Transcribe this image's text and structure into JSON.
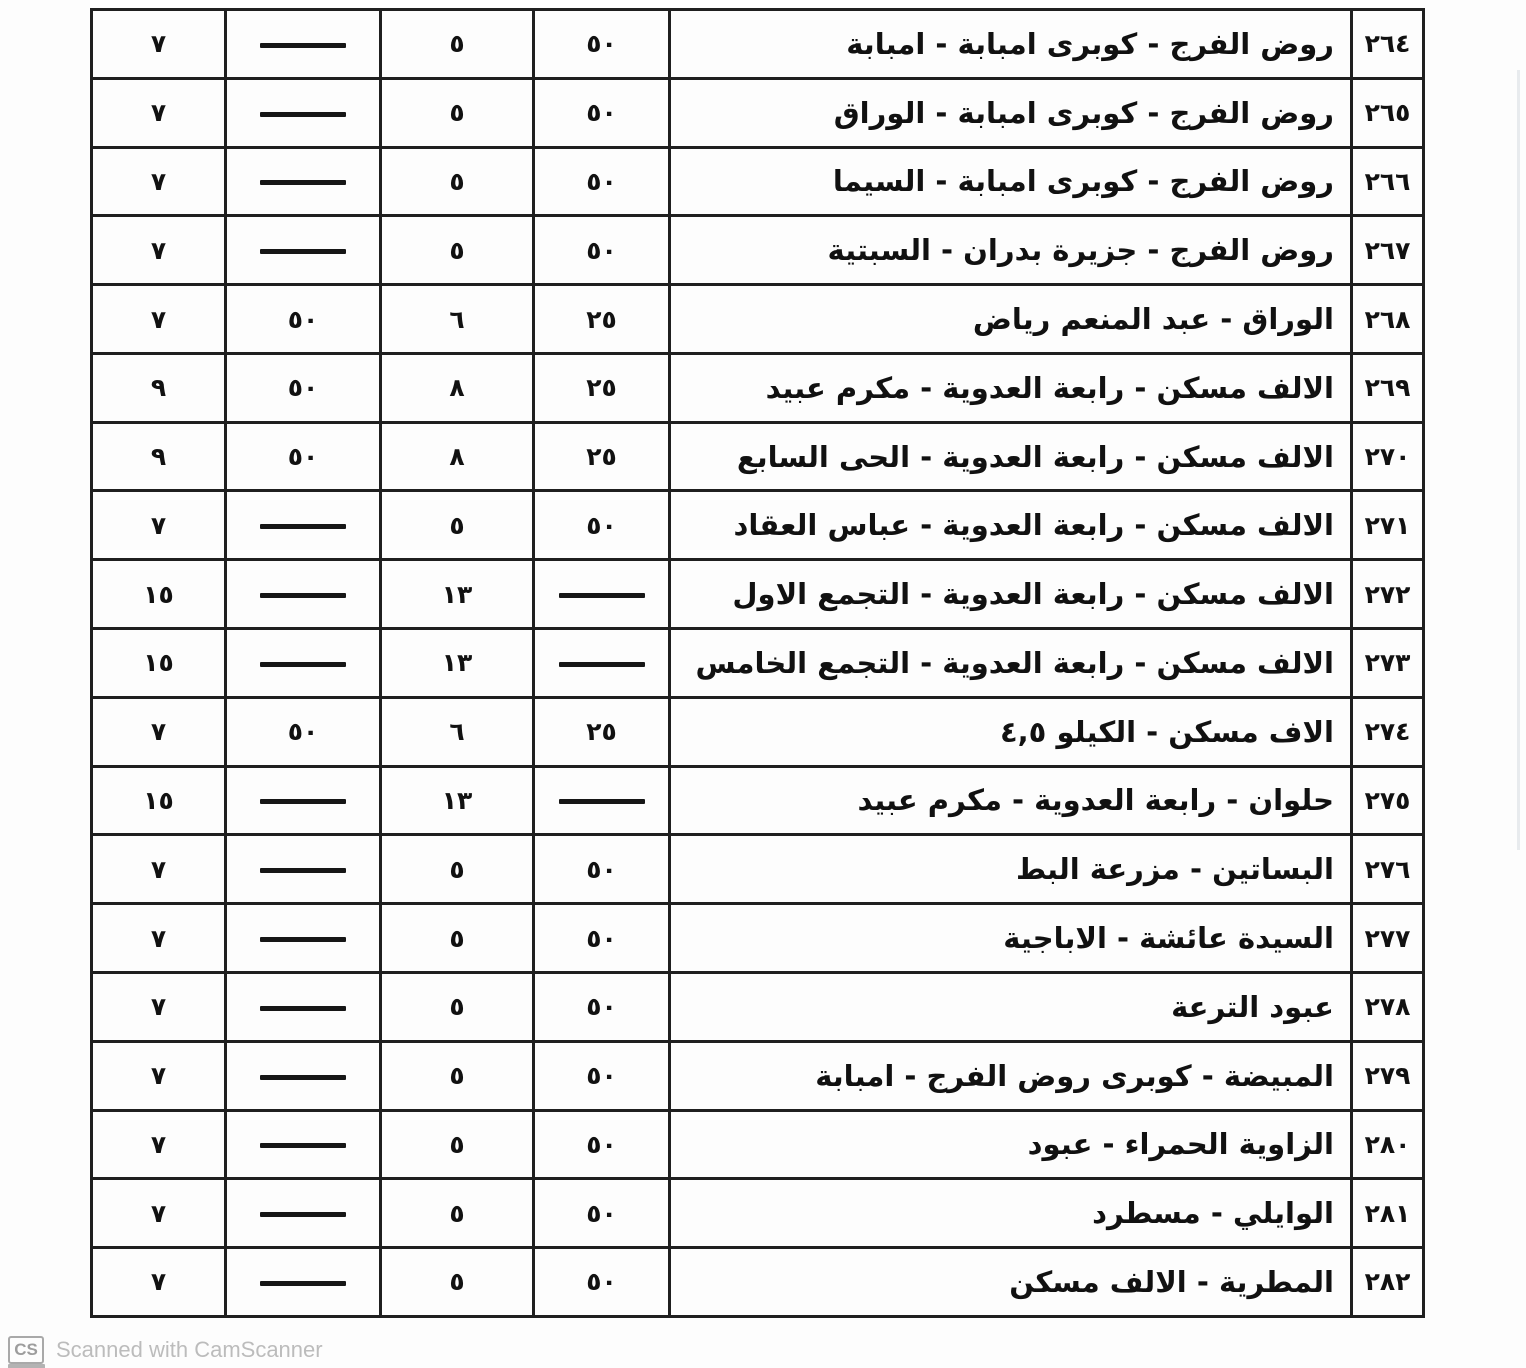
{
  "colors": {
    "paper": "#fdfdfd",
    "ink": "#111111",
    "line": "#1f1f1f",
    "watermark_gray": "#bcbcbc"
  },
  "watermark": {
    "icon_label": "CS",
    "text": "Scanned with CamScanner"
  },
  "table": {
    "direction": "rtl",
    "dash_symbol": "—",
    "rows": [
      {
        "num": "٢٦٤",
        "route": "روض الفرج - كوبرى امبابة - امبابة",
        "c1": "٥٠",
        "c2": "٥",
        "c3": "—",
        "c4": "٧"
      },
      {
        "num": "٢٦٥",
        "route": "روض الفرج - كوبرى امبابة - الوراق",
        "c1": "٥٠",
        "c2": "٥",
        "c3": "—",
        "c4": "٧"
      },
      {
        "num": "٢٦٦",
        "route": "روض الفرج - كوبرى امبابة - السيما",
        "c1": "٥٠",
        "c2": "٥",
        "c3": "—",
        "c4": "٧"
      },
      {
        "num": "٢٦٧",
        "route": "روض الفرج - جزيرة بدران - السبتية",
        "c1": "٥٠",
        "c2": "٥",
        "c3": "—",
        "c4": "٧"
      },
      {
        "num": "٢٦٨",
        "route": "الوراق - عبد المنعم رياض",
        "c1": "٢٥",
        "c2": "٦",
        "c3": "٥٠",
        "c4": "٧"
      },
      {
        "num": "٢٦٩",
        "route": "الالف مسكن - رابعة العدوية - مكرم عبيد",
        "c1": "٢٥",
        "c2": "٨",
        "c3": "٥٠",
        "c4": "٩"
      },
      {
        "num": "٢٧٠",
        "route": "الالف مسكن - رابعة العدوية - الحى السابع",
        "c1": "٢٥",
        "c2": "٨",
        "c3": "٥٠",
        "c4": "٩"
      },
      {
        "num": "٢٧١",
        "route": "الالف مسكن - رابعة العدوية - عباس العقاد",
        "c1": "٥٠",
        "c2": "٥",
        "c3": "—",
        "c4": "٧"
      },
      {
        "num": "٢٧٢",
        "route": "الالف مسكن - رابعة العدوية - التجمع الاول",
        "c1": "—",
        "c2": "١٣",
        "c3": "—",
        "c4": "١٥"
      },
      {
        "num": "٢٧٣",
        "route": "الالف مسكن - رابعة العدوية - التجمع الخامس",
        "c1": "—",
        "c2": "١٣",
        "c3": "—",
        "c4": "١٥"
      },
      {
        "num": "٢٧٤",
        "route": "الاف مسكن - الكيلو ٤,٥",
        "c1": "٢٥",
        "c2": "٦",
        "c3": "٥٠",
        "c4": "٧"
      },
      {
        "num": "٢٧٥",
        "route": "حلوان - رابعة العدوية - مكرم عبيد",
        "c1": "—",
        "c2": "١٣",
        "c3": "—",
        "c4": "١٥"
      },
      {
        "num": "٢٧٦",
        "route": "البساتين - مزرعة البط",
        "c1": "٥٠",
        "c2": "٥",
        "c3": "—",
        "c4": "٧"
      },
      {
        "num": "٢٧٧",
        "route": "السيدة عائشة - الاباجية",
        "c1": "٥٠",
        "c2": "٥",
        "c3": "—",
        "c4": "٧"
      },
      {
        "num": "٢٧٨",
        "route": "عبود الترعة",
        "c1": "٥٠",
        "c2": "٥",
        "c3": "—",
        "c4": "٧"
      },
      {
        "num": "٢٧٩",
        "route": "المبيضة - كوبرى روض الفرج - امبابة",
        "c1": "٥٠",
        "c2": "٥",
        "c3": "—",
        "c4": "٧"
      },
      {
        "num": "٢٨٠",
        "route": "الزاوية الحمراء - عبود",
        "c1": "٥٠",
        "c2": "٥",
        "c3": "—",
        "c4": "٧"
      },
      {
        "num": "٢٨١",
        "route": "الوايلي - مسطرد",
        "c1": "٥٠",
        "c2": "٥",
        "c3": "—",
        "c4": "٧"
      },
      {
        "num": "٢٨٢",
        "route": "المطرية - الالف مسكن",
        "c1": "٥٠",
        "c2": "٥",
        "c3": "—",
        "c4": "٧"
      }
    ]
  }
}
